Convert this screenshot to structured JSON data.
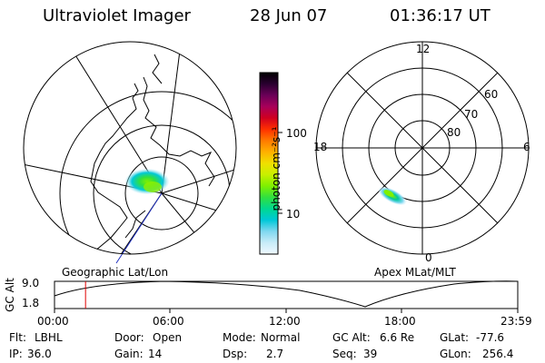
{
  "header": {
    "title": "Ultraviolet Imager",
    "date": "28 Jun 07",
    "time": "01:36:17 UT"
  },
  "colorbar": {
    "unit": "photon cm⁻²s⁻¹",
    "ticks": [
      "100",
      "10"
    ],
    "colors": [
      "#000000",
      "#2a0030",
      "#6a0058",
      "#a8005a",
      "#d00020",
      "#ff3000",
      "#ff7a00",
      "#ffb000",
      "#f0e000",
      "#c8f000",
      "#7ef000",
      "#30e040",
      "#00d890",
      "#00c8d8",
      "#80d8f0",
      "#c8ecf8",
      "#f0f8ff"
    ]
  },
  "left_map": {
    "caption": "Geographic Lat/Lon"
  },
  "right_map": {
    "caption": "Apex MLat/MLT",
    "mlt_labels": {
      "top": "12",
      "left": "18",
      "right": "6",
      "bottom": "0"
    },
    "lat_labels": [
      "60",
      "70",
      "80"
    ]
  },
  "altitude_plot": {
    "ylabel": "GC Alt",
    "yticks": [
      "9.0",
      "1.8"
    ],
    "xticks": [
      "00:00",
      "06:00",
      "12:00",
      "18:00",
      "23:59"
    ],
    "current_time_fraction": 0.067
  },
  "info": {
    "flt_label": "Flt:",
    "flt_value": "LBHL",
    "ip_label": "IP:",
    "ip_value": "36.0",
    "door_label": "Door:",
    "door_value": "Open",
    "gain_label": "Gain:",
    "gain_value": "14",
    "mode_label": "Mode:",
    "mode_value": "Normal",
    "dsp_label": "Dsp:",
    "dsp_value": "2.7",
    "gcalt_label": "GC Alt:",
    "gcalt_value": "6.6 Re",
    "seq_label": "Seq:",
    "seq_value": "39",
    "glat_label": "GLat:",
    "glat_value": "-77.6",
    "glon_label": "GLon:",
    "glon_value": "256.4"
  }
}
